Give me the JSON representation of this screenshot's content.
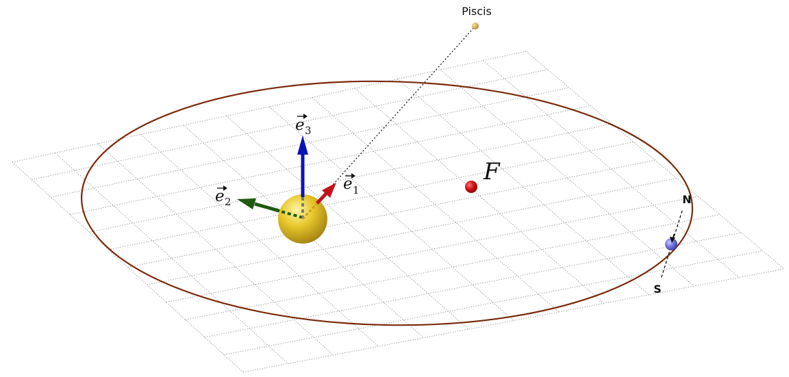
{
  "labels": {
    "star_name": "Piscis",
    "focus": "F",
    "e1_base": "e",
    "e1_sub": "1",
    "e2_base": "e",
    "e2_sub": "2",
    "e3_base": "e",
    "e3_sub": "3",
    "north": "N",
    "south": "S"
  },
  "colors": {
    "orbit": "#7a2a0a",
    "e1_arrow": "#c0141a",
    "e2_arrow": "#1e5a12",
    "e3_arrow": "#0a14b4",
    "sun": "#e0c020",
    "focus_point": "#c01010",
    "planet": "#6a6ad8",
    "star": "#d4a040"
  },
  "icons": {
    "sun": "sun-sphere",
    "planet": "planet-sphere",
    "star": "star-point"
  }
}
